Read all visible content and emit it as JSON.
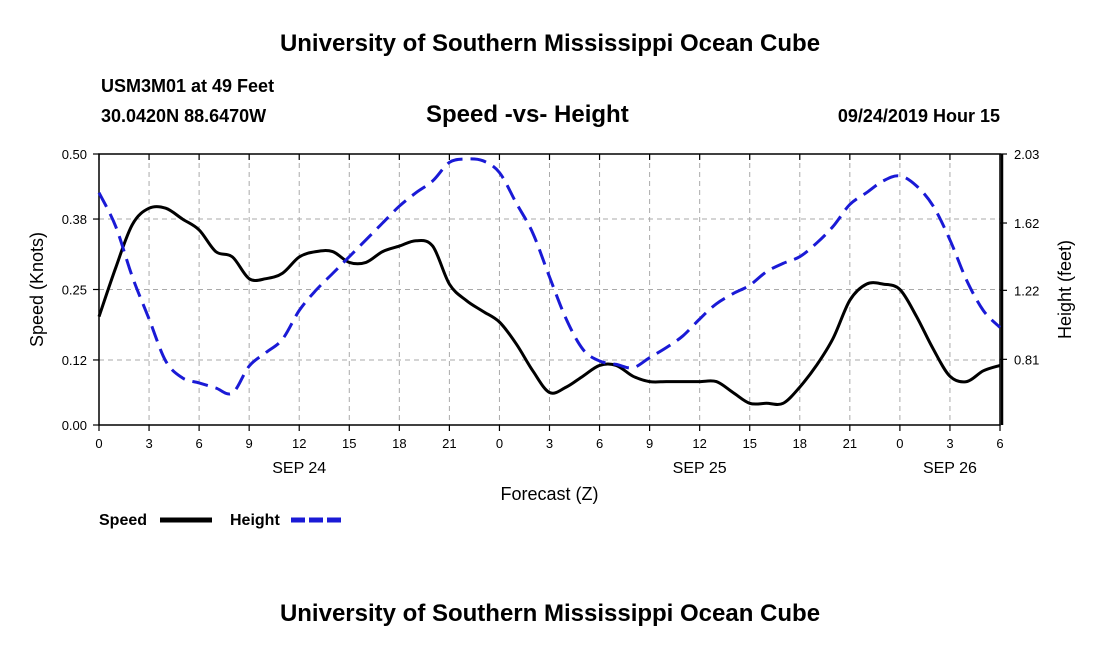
{
  "page": {
    "top_title": "University of Southern Mississippi Ocean Cube",
    "bottom_title": "University of Southern Mississippi Ocean Cube",
    "station": "USM3M01 at 49 Feet",
    "location": "30.0420N 88.6470W",
    "timestamp": "09/24/2019 Hour 15"
  },
  "colors": {
    "speed": "#000000",
    "height": "#1a1ad6",
    "grid": "#aaaaaa"
  },
  "chart_data": {
    "type": "line",
    "title": "Speed -vs- Height",
    "xlabel": "Forecast (Z)",
    "ylabel": "Speed (Knots)",
    "ylabel_right": "Height (feet)",
    "xlim": [
      0,
      54
    ],
    "ylim": [
      0,
      0.5
    ],
    "ylim_right": [
      0.42,
      2.03
    ],
    "xticks": [
      0,
      3,
      6,
      9,
      12,
      15,
      18,
      21,
      24,
      27,
      30,
      33,
      36,
      39,
      42,
      45,
      48,
      51,
      54
    ],
    "xtick_labels": [
      "0",
      "3",
      "6",
      "9",
      "12",
      "15",
      "18",
      "21",
      "0",
      "3",
      "6",
      "9",
      "12",
      "15",
      "18",
      "21",
      "0",
      "3",
      "6"
    ],
    "date_labels": [
      {
        "x": 12,
        "label": "SEP 24"
      },
      {
        "x": 36,
        "label": "SEP 25"
      },
      {
        "x": 51,
        "label": "SEP 26"
      }
    ],
    "yticks": [
      0.0,
      0.12,
      0.25,
      0.38,
      0.5
    ],
    "ytick_labels": [
      "0.00",
      "0.12",
      "0.25",
      "0.38",
      "0.50"
    ],
    "yticks_right": [
      0.81,
      1.22,
      1.62,
      2.03
    ],
    "ytick_labels_right": [
      "0.81",
      "1.22",
      "1.62",
      "2.03"
    ],
    "grid": true,
    "series": [
      {
        "name": "Speed",
        "axis": "left",
        "style": "solid",
        "x": [
          0,
          1,
          2,
          3,
          4,
          5,
          6,
          7,
          8,
          9,
          10,
          11,
          12,
          13,
          14,
          15,
          16,
          17,
          18,
          19,
          20,
          21,
          22,
          23,
          24,
          25,
          26,
          27,
          28,
          29,
          30,
          31,
          32,
          33,
          34,
          35,
          36,
          37,
          38,
          39,
          40,
          41,
          42,
          43,
          44,
          45,
          46,
          47,
          48,
          49,
          50,
          51,
          52,
          53,
          54
        ],
        "values": [
          0.2,
          0.29,
          0.37,
          0.4,
          0.4,
          0.38,
          0.36,
          0.32,
          0.31,
          0.27,
          0.27,
          0.28,
          0.31,
          0.32,
          0.32,
          0.3,
          0.3,
          0.32,
          0.33,
          0.34,
          0.33,
          0.26,
          0.23,
          0.21,
          0.19,
          0.15,
          0.1,
          0.06,
          0.07,
          0.09,
          0.11,
          0.11,
          0.09,
          0.08,
          0.08,
          0.08,
          0.08,
          0.08,
          0.06,
          0.04,
          0.04,
          0.04,
          0.07,
          0.11,
          0.16,
          0.23,
          0.26,
          0.26,
          0.25,
          0.2,
          0.14,
          0.09,
          0.08,
          0.1,
          0.11
        ]
      },
      {
        "name": "Height",
        "axis": "right",
        "style": "dashed",
        "x": [
          0,
          1,
          2,
          3,
          4,
          5,
          6,
          7,
          8,
          9,
          10,
          11,
          12,
          13,
          14,
          15,
          16,
          17,
          18,
          19,
          20,
          21,
          22,
          23,
          24,
          25,
          26,
          27,
          28,
          29,
          30,
          31,
          32,
          33,
          34,
          35,
          36,
          37,
          38,
          39,
          40,
          41,
          42,
          43,
          44,
          45,
          46,
          47,
          48,
          49,
          50,
          51,
          52,
          53,
          54
        ],
        "values": [
          1.8,
          1.6,
          1.3,
          1.05,
          0.8,
          0.7,
          0.67,
          0.64,
          0.61,
          0.77,
          0.85,
          0.93,
          1.1,
          1.22,
          1.32,
          1.42,
          1.52,
          1.62,
          1.72,
          1.8,
          1.87,
          1.98,
          2.0,
          1.99,
          1.92,
          1.74,
          1.56,
          1.3,
          1.05,
          0.87,
          0.8,
          0.78,
          0.76,
          0.82,
          0.88,
          0.95,
          1.05,
          1.14,
          1.2,
          1.25,
          1.33,
          1.38,
          1.42,
          1.5,
          1.6,
          1.73,
          1.8,
          1.87,
          1.9,
          1.84,
          1.72,
          1.52,
          1.28,
          1.1,
          1.0
        ]
      }
    ]
  }
}
